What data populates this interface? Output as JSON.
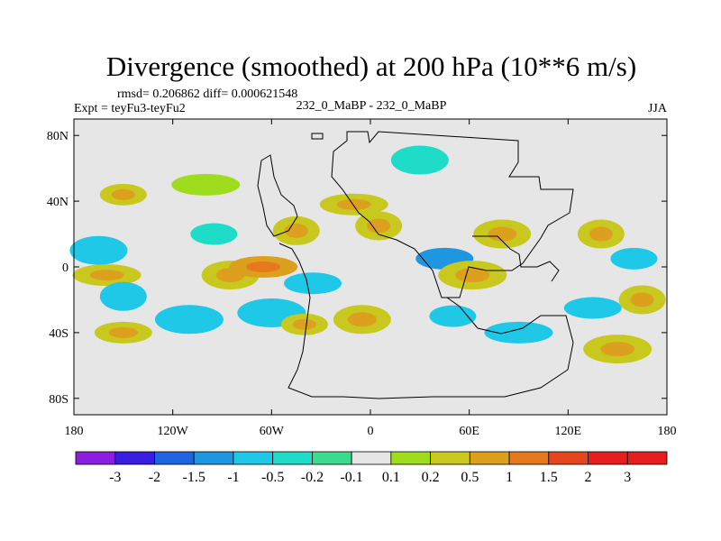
{
  "chart_data": {
    "type": "heatmap",
    "title": "Divergence (smoothed) at 200 hPa (10**6 m/s)",
    "stats": "rmsd= 0.206862  diff= 0.000621548",
    "expt": "Expt = teyFu3-teyFu2",
    "subtitle": "232_0_MaBP - 232_0_MaBP",
    "season": "JJA",
    "x_ticks": [
      "180",
      "120W",
      "60W",
      "0",
      "60E",
      "120E",
      "180"
    ],
    "x_tick_values": [
      -180,
      -120,
      -60,
      0,
      60,
      120,
      180
    ],
    "y_ticks": [
      "80N",
      "40N",
      "0",
      "40S",
      "80S"
    ],
    "y_tick_values": [
      80,
      40,
      0,
      -40,
      -80
    ],
    "xlim": [
      -180,
      180
    ],
    "ylim": [
      -90,
      90
    ],
    "colorbar": {
      "labels": [
        "-3",
        "-2",
        "-1.5",
        "-1",
        "-0.5",
        "-0.2",
        "-0.1",
        "0.1",
        "0.2",
        "0.5",
        "1",
        "1.5",
        "2",
        "3"
      ],
      "colors": [
        "#8c1ee0",
        "#3a1ee0",
        "#1e64e0",
        "#1e96e0",
        "#1ec8e6",
        "#1edcc8",
        "#3cdc8c",
        "#e6e6e6",
        "#a0dc1e",
        "#c8c81e",
        "#dca01e",
        "#e6781e",
        "#e6461e",
        "#e61e1e",
        "#e61e1e"
      ]
    },
    "blobs": [
      {
        "lon": -150,
        "lat": 44,
        "value": 0.5
      },
      {
        "lon": -165,
        "lat": 10,
        "value": -0.5
      },
      {
        "lon": -160,
        "lat": -5,
        "value": 0.5
      },
      {
        "lon": -150,
        "lat": -18,
        "value": -0.5
      },
      {
        "lon": -150,
        "lat": -40,
        "value": 0.5
      },
      {
        "lon": -110,
        "lat": -32,
        "value": -0.5
      },
      {
        "lon": -95,
        "lat": 20,
        "value": -0.2
      },
      {
        "lon": -85,
        "lat": -5,
        "value": 0.5
      },
      {
        "lon": -65,
        "lat": 0,
        "value": 1
      },
      {
        "lon": -45,
        "lat": 22,
        "value": 0.5
      },
      {
        "lon": -35,
        "lat": -10,
        "value": -0.5
      },
      {
        "lon": -60,
        "lat": -28,
        "value": -0.5
      },
      {
        "lon": -40,
        "lat": -35,
        "value": 0.5
      },
      {
        "lon": -5,
        "lat": -32,
        "value": 0.5
      },
      {
        "lon": -10,
        "lat": 38,
        "value": 0.5
      },
      {
        "lon": 5,
        "lat": 25,
        "value": 0.5
      },
      {
        "lon": 45,
        "lat": 5,
        "value": -1
      },
      {
        "lon": 62,
        "lat": -5,
        "value": 0.5
      },
      {
        "lon": 50,
        "lat": -30,
        "value": -0.5
      },
      {
        "lon": 80,
        "lat": 20,
        "value": 0.5
      },
      {
        "lon": 90,
        "lat": -40,
        "value": -0.5
      },
      {
        "lon": 140,
        "lat": 20,
        "value": 0.5
      },
      {
        "lon": 135,
        "lat": -25,
        "value": -0.5
      },
      {
        "lon": 150,
        "lat": -50,
        "value": 0.5
      },
      {
        "lon": 160,
        "lat": 5,
        "value": -0.5
      },
      {
        "lon": 30,
        "lat": 65,
        "value": -0.2
      },
      {
        "lon": -100,
        "lat": 50,
        "value": 0.2
      },
      {
        "lon": 165,
        "lat": -20,
        "value": 0.5
      }
    ]
  }
}
